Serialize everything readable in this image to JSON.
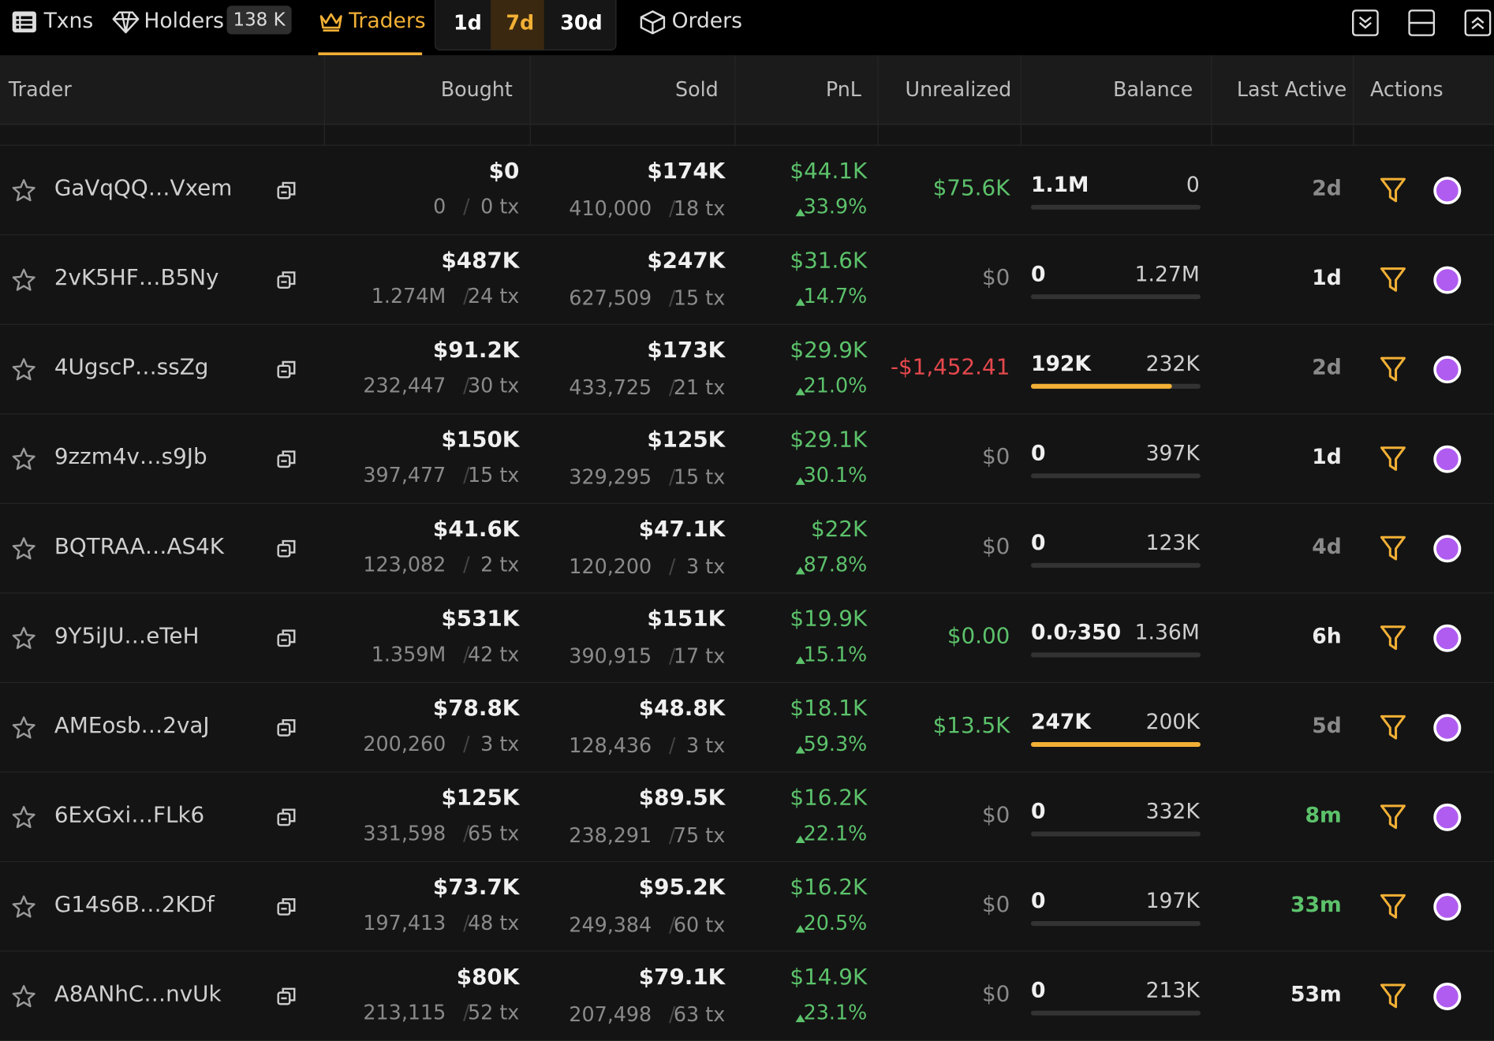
{
  "tabs": {
    "txns": "Txns",
    "holders": "Holders",
    "holders_count": "138 K",
    "traders": "Traders",
    "periods": [
      "1d",
      "7d",
      "30d"
    ],
    "orders": "Orders"
  },
  "table": {
    "columns": [
      "Trader",
      "Bought",
      "Sold",
      "PnL",
      "Unrealized",
      "Balance",
      "Last Active",
      "Actions"
    ],
    "rows": [
      {
        "trader": "GaVqQQ…Vxem",
        "bought": "$0",
        "bought_amount": "0",
        "bought_tx": "0 tx",
        "sold": "$174K",
        "sold_amount": "410,000",
        "sold_tx": "18 tx",
        "pnl": "$44.1K",
        "pnl_pct": "33.9%",
        "unrealized": "$75.6K",
        "unrealized_color": "#5cc26b",
        "balance_left": "1.1M",
        "balance_right": "0",
        "held_fraction": 0,
        "last_active": "2d",
        "last_active_color": "#8a8a8a"
      },
      {
        "trader": "2vK5HF…B5Ny",
        "bought": "$487K",
        "bought_amount": "1.274M",
        "bought_tx": "24 tx",
        "sold": "$247K",
        "sold_amount": "627,509",
        "sold_tx": "15 tx",
        "pnl": "$31.6K",
        "pnl_pct": "14.7%",
        "unrealized": "$0",
        "unrealized_color": "#8a8a8a",
        "balance_left": "0",
        "balance_right": "1.27M",
        "held_fraction": 0,
        "last_active": "1d",
        "last_active_color": "#ececec"
      },
      {
        "trader": "4UgscP…ssZg",
        "bought": "$91.2K",
        "bought_amount": "232,447",
        "bought_tx": "30 tx",
        "sold": "$173K",
        "sold_amount": "433,725",
        "sold_tx": "21 tx",
        "pnl": "$29.9K",
        "pnl_pct": "21.0%",
        "unrealized": "-$1,452.41",
        "unrealized_color": "#e5484d",
        "balance_left": "192K",
        "balance_right": "232K",
        "held_fraction": 0.83,
        "last_active": "2d",
        "last_active_color": "#8a8a8a"
      },
      {
        "trader": "9zzm4v…s9Jb",
        "bought": "$150K",
        "bought_amount": "397,477",
        "bought_tx": "15 tx",
        "sold": "$125K",
        "sold_amount": "329,295",
        "sold_tx": "15 tx",
        "pnl": "$29.1K",
        "pnl_pct": "30.1%",
        "unrealized": "$0",
        "unrealized_color": "#8a8a8a",
        "balance_left": "0",
        "balance_right": "397K",
        "held_fraction": 0,
        "last_active": "1d",
        "last_active_color": "#ececec"
      },
      {
        "trader": "BQTRAA…AS4K",
        "bought": "$41.6K",
        "bought_amount": "123,082",
        "bought_tx": "2 tx",
        "sold": "$47.1K",
        "sold_amount": "120,200",
        "sold_tx": "3 tx",
        "pnl": "$22K",
        "pnl_pct": "87.8%",
        "unrealized": "$0",
        "unrealized_color": "#8a8a8a",
        "balance_left": "0",
        "balance_right": "123K",
        "held_fraction": 0,
        "last_active": "4d",
        "last_active_color": "#8a8a8a"
      },
      {
        "trader": "9Y5iJU…eTeH",
        "bought": "$531K",
        "bought_amount": "1.359M",
        "bought_tx": "42 tx",
        "sold": "$151K",
        "sold_amount": "390,915",
        "sold_tx": "17 tx",
        "pnl": "$19.9K",
        "pnl_pct": "15.1%",
        "unrealized": "$0.00",
        "unrealized_color": "#5cc26b",
        "balance_left": "0.0₇350",
        "balance_right": "1.36M",
        "held_fraction": 0,
        "last_active": "6h",
        "last_active_color": "#ececec"
      },
      {
        "trader": "AMEosb…2vaJ",
        "bought": "$78.8K",
        "bought_amount": "200,260",
        "bought_tx": "3 tx",
        "sold": "$48.8K",
        "sold_amount": "128,436",
        "sold_tx": "3 tx",
        "pnl": "$18.1K",
        "pnl_pct": "59.3%",
        "unrealized": "$13.5K",
        "unrealized_color": "#5cc26b",
        "balance_left": "247K",
        "balance_right": "200K",
        "held_fraction": 1,
        "last_active": "5d",
        "last_active_color": "#8a8a8a"
      },
      {
        "trader": "6ExGxi…FLk6",
        "bought": "$125K",
        "bought_amount": "331,598",
        "bought_tx": "65 tx",
        "sold": "$89.5K",
        "sold_amount": "238,291",
        "sold_tx": "75 tx",
        "pnl": "$16.2K",
        "pnl_pct": "22.1%",
        "unrealized": "$0",
        "unrealized_color": "#8a8a8a",
        "balance_left": "0",
        "balance_right": "332K",
        "held_fraction": 0,
        "last_active": "8m",
        "last_active_color": "#5cc26b"
      },
      {
        "trader": "G14s6B…2KDf",
        "bought": "$73.7K",
        "bought_amount": "197,413",
        "bought_tx": "48 tx",
        "sold": "$95.2K",
        "sold_amount": "249,384",
        "sold_tx": "60 tx",
        "pnl": "$16.2K",
        "pnl_pct": "20.5%",
        "unrealized": "$0",
        "unrealized_color": "#8a8a8a",
        "balance_left": "0",
        "balance_right": "197K",
        "held_fraction": 0,
        "last_active": "33m",
        "last_active_color": "#5cc26b"
      },
      {
        "trader": "A8ANhC…nvUk",
        "bought": "$80K",
        "bought_amount": "213,115",
        "bought_tx": "52 tx",
        "sold": "$79.1K",
        "sold_amount": "207,498",
        "sold_tx": "63 tx",
        "pnl": "$14.9K",
        "pnl_pct": "23.1%",
        "unrealized": "$0",
        "unrealized_color": "#8a8a8a",
        "balance_left": "0",
        "balance_right": "213K",
        "held_fraction": 0,
        "last_active": "53m",
        "last_active_color": "#ececec"
      }
    ]
  }
}
